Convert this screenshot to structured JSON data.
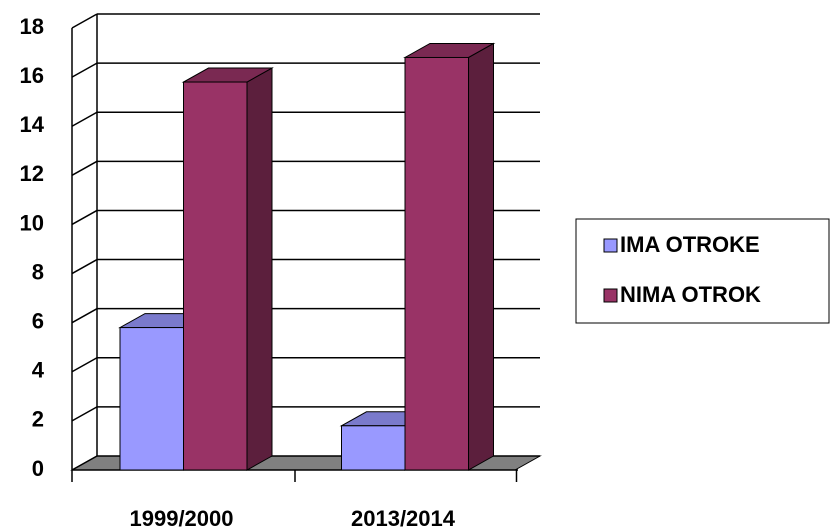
{
  "chart_data": {
    "type": "bar3d",
    "categories": [
      "1999/2000",
      "2013/2014"
    ],
    "series": [
      {
        "name": "IMA OTROKE",
        "color": "#9999ff",
        "values": [
          5.8,
          1.8
        ]
      },
      {
        "name": "NIMA OTROK",
        "color": "#993366",
        "values": [
          15.8,
          16.8
        ]
      }
    ],
    "ylim": [
      0,
      18
    ],
    "yticks": [
      0,
      2,
      4,
      6,
      8,
      10,
      12,
      14,
      16,
      18
    ],
    "grid": true,
    "legend": "right"
  }
}
